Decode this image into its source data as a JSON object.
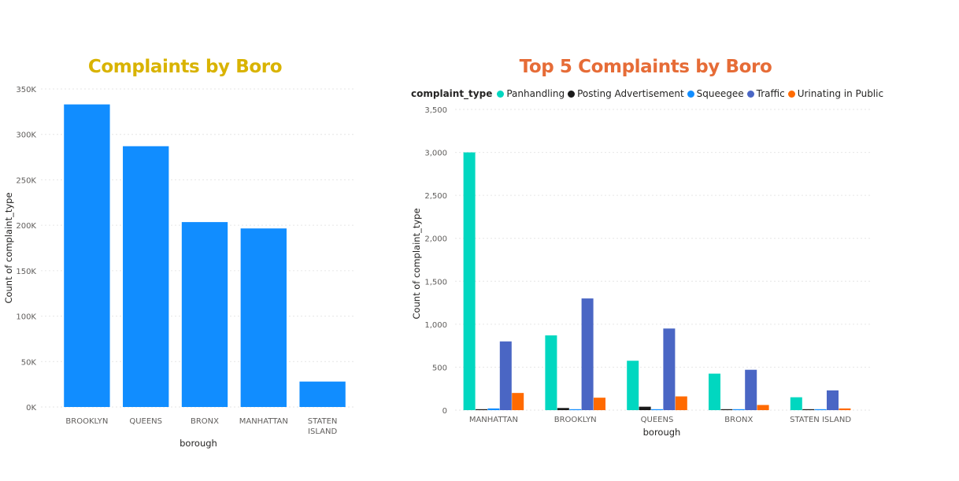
{
  "chart_data": [
    {
      "type": "bar",
      "title": "Complaints by Boro",
      "title_color": "#D9B300",
      "xlabel": "borough",
      "ylabel": "Count of complaint_type",
      "ylim": [
        0,
        350000
      ],
      "yticks": [
        0,
        50000,
        100000,
        150000,
        200000,
        250000,
        300000,
        350000
      ],
      "ytick_labels": [
        "0K",
        "50K",
        "100K",
        "150K",
        "200K",
        "250K",
        "300K",
        "350K"
      ],
      "categories": [
        "BROOKLYN",
        "QUEENS",
        "BRONX",
        "MANHATTAN",
        "STATEN ISLAND"
      ],
      "category_lines": [
        [
          "BROOKLYN"
        ],
        [
          "QUEENS"
        ],
        [
          "BRONX"
        ],
        [
          "MANHATTAN"
        ],
        [
          "STATEN",
          "ISLAND"
        ]
      ],
      "values": [
        333000,
        287000,
        203500,
        196500,
        28000
      ],
      "bar_color": "#118DFF",
      "grid": true
    },
    {
      "type": "bar",
      "title": "Top 5 Complaints by Boro",
      "title_color": "#E66C37",
      "xlabel": "borough",
      "ylabel": "Count of complaint_type",
      "legend_title": "complaint_type",
      "legend_position": "top-left",
      "ylim": [
        0,
        3500
      ],
      "yticks": [
        0,
        500,
        1000,
        1500,
        2000,
        2500,
        3000,
        3500
      ],
      "ytick_labels": [
        "0",
        "500",
        "1,000",
        "1,500",
        "2,000",
        "2,500",
        "3,000",
        "3,500"
      ],
      "categories": [
        "MANHATTAN",
        "BROOKLYN",
        "QUEENS",
        "BRONX",
        "STATEN ISLAND"
      ],
      "series": [
        {
          "name": "Panhandling",
          "color": "#01D7C0",
          "values": [
            3000,
            870,
            575,
            425,
            150
          ]
        },
        {
          "name": "Posting Advertisement",
          "color": "#1A1A1A",
          "values": [
            5,
            25,
            40,
            5,
            2
          ]
        },
        {
          "name": "Squeegee",
          "color": "#118DFF",
          "values": [
            20,
            5,
            5,
            5,
            5
          ]
        },
        {
          "name": "Traffic",
          "color": "#4A66C4",
          "values": [
            800,
            1300,
            950,
            470,
            230
          ]
        },
        {
          "name": "Urinating in Public",
          "color": "#FF6A00",
          "values": [
            200,
            145,
            160,
            60,
            20
          ]
        }
      ],
      "grid": true
    }
  ]
}
